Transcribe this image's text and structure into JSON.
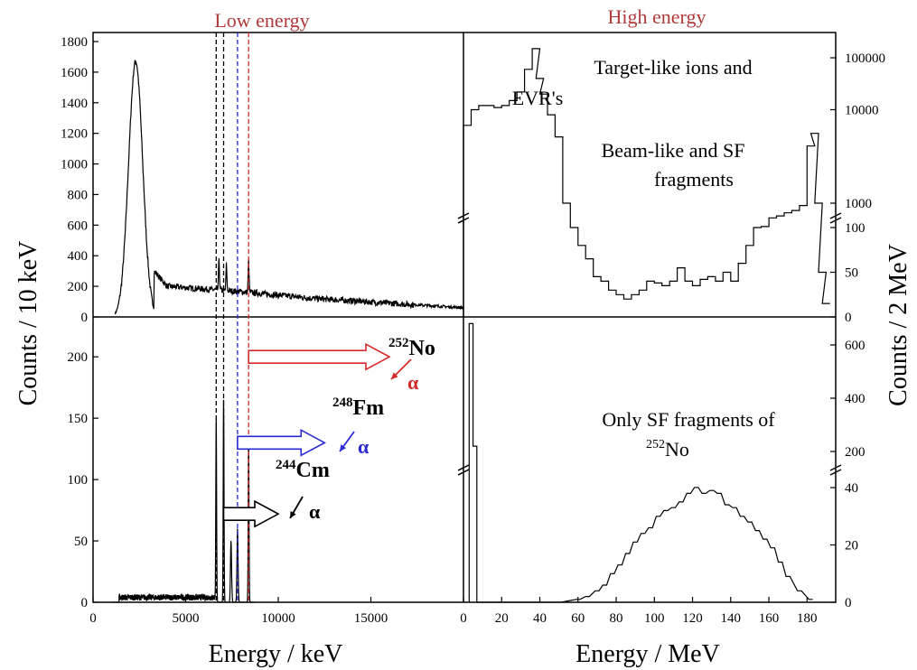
{
  "labels": {
    "top_left": "Low energy",
    "top_right": "High energy",
    "y_left": "Counts / 10 keV",
    "y_right": "Counts / 2 MeV",
    "x_left": "Energy / keV",
    "x_right": "Energy / MeV"
  },
  "colors": {
    "red": "#d42a2a",
    "blue": "#2a2ad4",
    "black": "#000000",
    "heading": "#b03a3a"
  },
  "annotations": {
    "tr_line1": "Target-like ions and",
    "tr_line2": "EVR's",
    "tr_line3": "Beam-like and SF",
    "tr_line4": "fragments",
    "br_line1": "Only SF fragments of",
    "br_mass": "252",
    "br_elem": "No"
  },
  "decay_chain": [
    {
      "mass": "252",
      "element": "No",
      "alpha": "α"
    },
    {
      "mass": "248",
      "element": "Fm",
      "alpha": "α"
    },
    {
      "mass": "244",
      "element": "Cm",
      "alpha": "α"
    }
  ],
  "chart_data": [
    {
      "panel": "top-left",
      "type": "line",
      "xlim": [
        0,
        20000
      ],
      "ylim": [
        0,
        1800
      ],
      "yticks": [
        0,
        200,
        400,
        600,
        800,
        1000,
        1200,
        1400,
        1600,
        1800
      ],
      "peaks": [
        {
          "x": 2300,
          "y": 1670
        },
        {
          "x": 6800,
          "y": 390
        },
        {
          "x": 7200,
          "y": 340
        },
        {
          "x": 8400,
          "y": 380
        }
      ],
      "tail": [
        [
          3300,
          300
        ],
        [
          4000,
          200
        ],
        [
          8000,
          165
        ],
        [
          12000,
          120
        ],
        [
          16000,
          90
        ],
        [
          20000,
          60
        ]
      ],
      "marker_lines": [
        {
          "x": 6650,
          "color": "black"
        },
        {
          "x": 7050,
          "color": "black"
        },
        {
          "x": 7800,
          "color": "blue"
        },
        {
          "x": 8400,
          "color": "red"
        }
      ]
    },
    {
      "panel": "top-right",
      "type": "line",
      "xlim": [
        0,
        195
      ],
      "y_scale": "broken: linear 0-100 below, log 1000-100000 above",
      "yticks_lower": [
        0,
        50,
        100
      ],
      "yticks_upper": [
        1000,
        10000,
        100000
      ],
      "x": [
        2,
        6,
        10,
        14,
        18,
        22,
        26,
        30,
        34,
        38,
        40,
        42,
        46,
        50,
        54,
        58,
        62,
        66,
        70,
        74,
        78,
        82,
        86,
        90,
        94,
        98,
        102,
        106,
        110,
        114,
        118,
        122,
        126,
        130,
        134,
        138,
        142,
        146,
        150,
        154,
        158,
        162,
        166,
        170,
        174,
        178,
        182,
        184,
        186,
        188,
        190
      ],
      "values": [
        5000,
        10000,
        12000,
        12000,
        11000,
        12000,
        15000,
        22000,
        60000,
        150000,
        40000,
        20000,
        8000,
        3000,
        1000,
        100,
        80,
        65,
        45,
        40,
        30,
        25,
        20,
        25,
        30,
        40,
        38,
        35,
        40,
        55,
        40,
        35,
        42,
        45,
        40,
        50,
        40,
        60,
        80,
        100,
        110,
        250,
        300,
        400,
        500,
        800,
        2000,
        3500,
        1000,
        50,
        15
      ]
    },
    {
      "panel": "bottom-left",
      "type": "line",
      "xlim": [
        0,
        20000
      ],
      "ylim": [
        0,
        220
      ],
      "yticks": [
        0,
        50,
        100,
        150,
        200
      ],
      "peaks": [
        {
          "x": 6650,
          "y": 150
        },
        {
          "x": 7050,
          "y": 165
        },
        {
          "x": 7450,
          "y": 50
        },
        {
          "x": 7800,
          "y": 60
        },
        {
          "x": 8400,
          "y": 135
        }
      ],
      "baseline_region": [
        [
          1000,
          0
        ],
        [
          1500,
          5
        ],
        [
          3500,
          3
        ],
        [
          6500,
          3
        ]
      ],
      "arrows": [
        {
          "from_x": 8400,
          "y": 200,
          "to_x": 16000,
          "color": "red"
        },
        {
          "from_x": 7800,
          "y": 130,
          "to_x": 12500,
          "color": "blue"
        },
        {
          "from_x": 7050,
          "y": 72,
          "to_x": 10000,
          "color": "black"
        }
      ]
    },
    {
      "panel": "bottom-right",
      "type": "line",
      "xlim": [
        0,
        195
      ],
      "xticks": [
        0,
        20,
        40,
        60,
        80,
        100,
        120,
        140,
        160,
        180
      ],
      "y_scale": "broken: linear 0-40 below, linear 200-600 above",
      "yticks_lower": [
        0,
        20,
        40
      ],
      "yticks_upper": [
        200,
        400,
        600
      ],
      "x": [
        4,
        6,
        8,
        30,
        50,
        60,
        65,
        70,
        74,
        78,
        82,
        86,
        90,
        94,
        98,
        102,
        106,
        110,
        114,
        118,
        122,
        126,
        130,
        134,
        138,
        142,
        146,
        150,
        154,
        158,
        162,
        166,
        170,
        176,
        182
      ],
      "values": [
        680,
        220,
        0,
        0,
        0,
        1,
        2,
        4,
        6,
        10,
        13,
        17,
        21,
        24,
        26,
        30,
        32,
        33,
        35,
        38,
        41,
        38,
        39,
        38,
        34,
        33,
        30,
        28,
        25,
        22,
        19,
        14,
        9,
        4,
        1
      ]
    }
  ]
}
